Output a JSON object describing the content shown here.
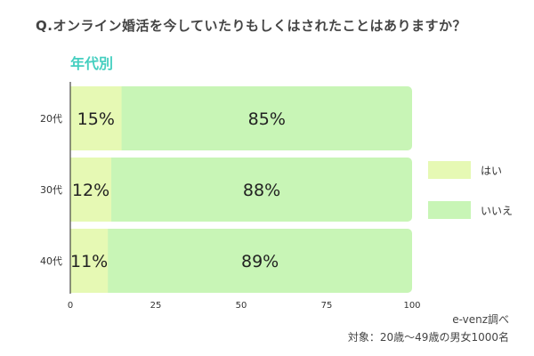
{
  "title": "Q.オンライン婚活を今していたりもしくはされたことはありますか？",
  "subtitle": "年代別",
  "source": "e-venz調べ",
  "note": "対象：20歳〜49歳の男女1000名",
  "colors": {
    "yes": "#e6f9b4",
    "no": "#c8f5b6",
    "axis": "#222222"
  },
  "chart_data": {
    "type": "bar",
    "orientation": "horizontal",
    "stacked": true,
    "categories": [
      "20代",
      "30代",
      "40代"
    ],
    "series": [
      {
        "name": "はい",
        "values": [
          15,
          12,
          11
        ],
        "labels": [
          "15%",
          "12%",
          "11%"
        ]
      },
      {
        "name": "いいえ",
        "values": [
          85,
          88,
          89
        ],
        "labels": [
          "85%",
          "88%",
          "89%"
        ]
      }
    ],
    "xlim": [
      0,
      100
    ],
    "xticks": [
      0,
      25,
      50,
      75,
      100
    ],
    "xtick_labels": [
      "0",
      "25",
      "50",
      "75",
      "100"
    ],
    "grid": false,
    "legend_position": "right"
  }
}
